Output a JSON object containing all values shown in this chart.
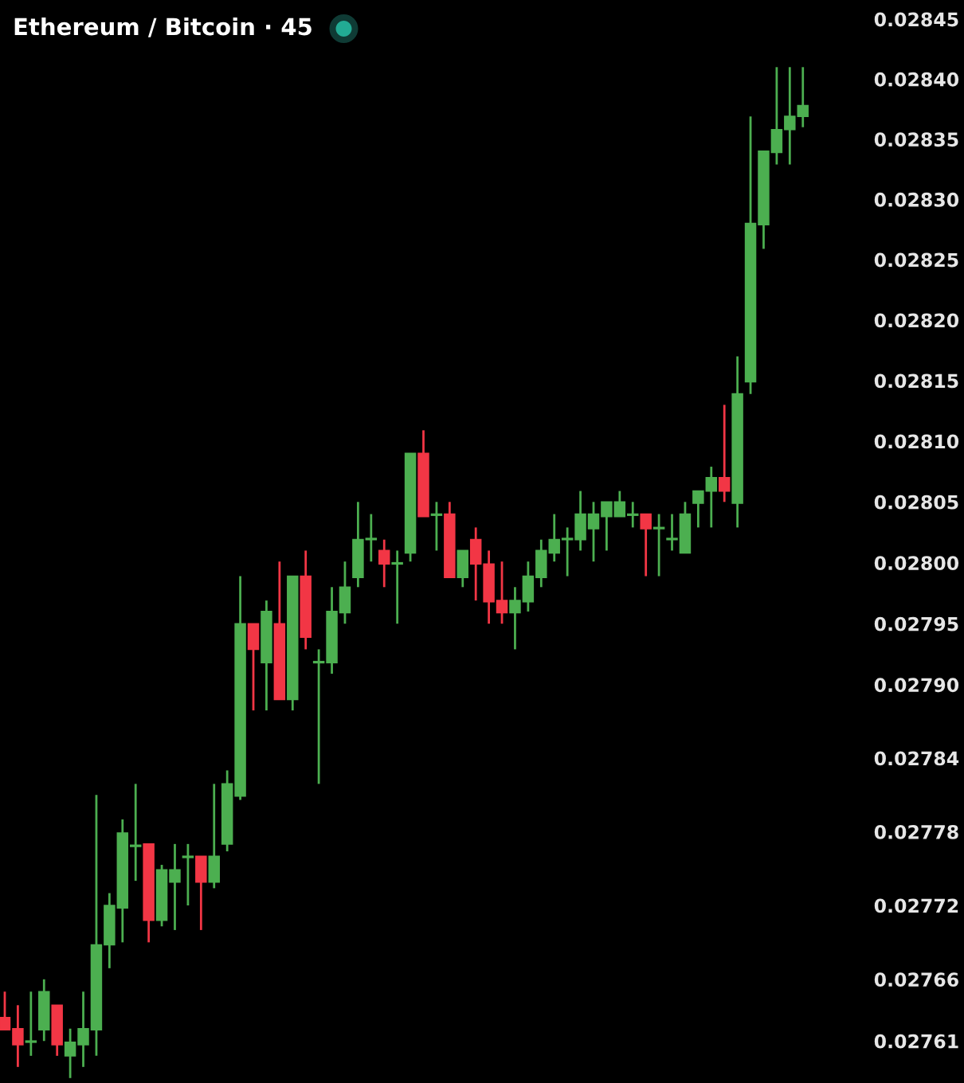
{
  "chart_data": {
    "type": "candlestick",
    "title": "Ethereum / Bitcoin · 45",
    "categories": [
      null,
      null,
      null,
      null,
      null,
      null,
      null,
      null,
      null,
      null,
      null,
      null,
      null,
      null,
      null,
      null,
      null,
      null,
      null,
      null,
      null,
      null,
      null,
      null,
      null,
      null,
      null,
      null,
      null,
      null,
      null,
      null,
      null,
      null,
      null,
      null,
      null,
      null,
      null,
      null,
      null,
      null,
      null,
      null,
      null,
      null,
      null,
      null,
      null,
      null,
      null,
      null,
      null,
      null,
      null,
      null,
      null,
      null,
      null,
      null,
      null,
      null
    ],
    "ohlc": [
      [
        0.027629,
        0.02765,
        0.027619,
        0.027619
      ],
      [
        0.02762,
        0.027639,
        0.027589,
        0.027607
      ],
      [
        0.027609,
        0.02765,
        0.027598,
        0.02761
      ],
      [
        0.027619,
        0.02766,
        0.02761,
        0.02765
      ],
      [
        0.027639,
        0.027639,
        0.027598,
        0.027607
      ],
      [
        0.027598,
        0.02762,
        0.02758,
        0.027609
      ],
      [
        0.027607,
        0.02765,
        0.027589,
        0.02762
      ],
      [
        0.027619,
        0.02781,
        0.027598,
        0.027688
      ],
      [
        0.027688,
        0.02773,
        0.027669,
        0.02772
      ],
      [
        0.027718,
        0.02779,
        0.02769,
        0.027779
      ],
      [
        0.027768,
        0.027819,
        0.02774,
        0.027769
      ],
      [
        0.02777,
        0.02777,
        0.02769,
        0.027708
      ],
      [
        0.027708,
        0.027753,
        0.027703,
        0.027749
      ],
      [
        0.027739,
        0.02777,
        0.0277,
        0.027749
      ],
      [
        0.027759,
        0.02777,
        0.02772,
        0.02776
      ],
      [
        0.02776,
        0.02776,
        0.0277,
        0.027739
      ],
      [
        0.027739,
        0.027819,
        0.027734,
        0.02776
      ],
      [
        0.02777,
        0.02783,
        0.027764,
        0.027819
      ],
      [
        0.027809,
        0.027989,
        0.027806,
        0.02795
      ],
      [
        0.02795,
        0.02795,
        0.027879,
        0.027929
      ],
      [
        0.027918,
        0.027969,
        0.027879,
        0.02796
      ],
      [
        0.02795,
        0.028001,
        0.027888,
        0.027888
      ],
      [
        0.027888,
        0.027989,
        0.027879,
        0.027989
      ],
      [
        0.027989,
        0.02801,
        0.027929,
        0.027939
      ],
      [
        0.027918,
        0.027929,
        0.027819,
        0.027919
      ],
      [
        0.027918,
        0.02798,
        0.027909,
        0.02796
      ],
      [
        0.027959,
        0.028001,
        0.02795,
        0.02798
      ],
      [
        0.027988,
        0.02805,
        0.02798,
        0.028019
      ],
      [
        0.028019,
        0.02804,
        0.028001,
        0.02802
      ],
      [
        0.02801,
        0.028019,
        0.02798,
        0.027999
      ],
      [
        0.027999,
        0.02801,
        0.02795,
        0.028
      ],
      [
        0.028008,
        0.02809,
        0.028001,
        0.02809
      ],
      [
        0.02809,
        0.028109,
        0.028038,
        0.028038
      ],
      [
        0.028039,
        0.02805,
        0.02801,
        0.02804
      ],
      [
        0.02804,
        0.02805,
        0.027988,
        0.027988
      ],
      [
        0.027988,
        0.02801,
        0.02798,
        0.02801
      ],
      [
        0.028019,
        0.028029,
        0.027969,
        0.027999
      ],
      [
        0.027999,
        0.02801,
        0.02795,
        0.027968
      ],
      [
        0.027969,
        0.028001,
        0.02795,
        0.027959
      ],
      [
        0.027959,
        0.02798,
        0.027929,
        0.027969
      ],
      [
        0.027968,
        0.028001,
        0.02796,
        0.027989
      ],
      [
        0.027988,
        0.028019,
        0.02798,
        0.02801
      ],
      [
        0.028008,
        0.02804,
        0.028001,
        0.028019
      ],
      [
        0.028019,
        0.028029,
        0.027989,
        0.02802
      ],
      [
        0.028019,
        0.028059,
        0.02801,
        0.02804
      ],
      [
        0.028028,
        0.02805,
        0.028001,
        0.02804
      ],
      [
        0.028038,
        0.02805,
        0.02801,
        0.02805
      ],
      [
        0.028038,
        0.028059,
        0.028038,
        0.02805
      ],
      [
        0.028039,
        0.02805,
        0.028029,
        0.02804
      ],
      [
        0.02804,
        0.02804,
        0.027989,
        0.028028
      ],
      [
        0.028028,
        0.02804,
        0.027989,
        0.028029
      ],
      [
        0.028019,
        0.02804,
        0.02801,
        0.02802
      ],
      [
        0.028008,
        0.02805,
        0.028008,
        0.02804
      ],
      [
        0.028049,
        0.028059,
        0.028029,
        0.028059
      ],
      [
        0.028059,
        0.028079,
        0.028029,
        0.02807
      ],
      [
        0.02807,
        0.02813,
        0.02805,
        0.028059
      ],
      [
        0.028049,
        0.02817,
        0.028029,
        0.028139
      ],
      [
        0.028149,
        0.028369,
        0.028139,
        0.02828
      ],
      [
        0.028279,
        0.02834,
        0.028259,
        0.02834
      ],
      [
        0.028339,
        0.02841,
        0.028329,
        0.028358
      ],
      [
        0.028358,
        0.02841,
        0.028329,
        0.028369
      ],
      [
        0.028369,
        0.02841,
        0.02836,
        0.028378
      ]
    ],
    "colors": [
      "#f23645",
      "#f23645",
      "#4caf50",
      "#4caf50",
      "#f23645",
      "#4caf50",
      "#4caf50",
      "#4caf50",
      "#4caf50",
      "#4caf50",
      "#4caf50",
      "#f23645",
      "#4caf50",
      "#4caf50",
      "#4caf50",
      "#f23645",
      "#4caf50",
      "#4caf50",
      "#4caf50",
      "#f23645",
      "#4caf50",
      "#f23645",
      "#4caf50",
      "#f23645",
      "#4caf50",
      "#4caf50",
      "#4caf50",
      "#4caf50",
      "#4caf50",
      "#f23645",
      "#4caf50",
      "#4caf50",
      "#f23645",
      "#4caf50",
      "#f23645",
      "#4caf50",
      "#f23645",
      "#f23645",
      "#f23645",
      "#4caf50",
      "#4caf50",
      "#4caf50",
      "#4caf50",
      "#4caf50",
      "#4caf50",
      "#4caf50",
      "#4caf50",
      "#4caf50",
      "#4caf50",
      "#f23645",
      "#4caf50",
      "#4caf50",
      "#4caf50",
      "#4caf50",
      "#4caf50",
      "#f23645",
      "#4caf50",
      "#4caf50",
      "#4caf50",
      "#4caf50",
      "#4caf50",
      "#4caf50"
    ],
    "log": "y",
    "ylim": [
      0.027576,
      0.028466
    ],
    "yticks": [
      0.02845,
      {
        "value": 0.0284,
        "label": "0.02840"
      },
      0.02835,
      {
        "value": 0.0283,
        "label": "0.02830"
      },
      0.02825,
      {
        "value": 0.0282,
        "label": "0.02820"
      },
      0.02815,
      {
        "value": 0.0281,
        "label": "0.02810"
      },
      0.02805,
      {
        "value": 0.028,
        "label": "0.02800"
      },
      0.02795,
      {
        "value": 0.0279,
        "label": "0.02790"
      },
      0.02784,
      0.02778,
      0.02772,
      0.02766,
      0.02761
    ],
    "tick_labels": "y",
    "grid": false
  }
}
